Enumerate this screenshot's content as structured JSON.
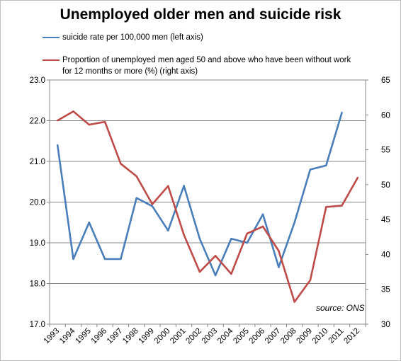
{
  "title": "Unemployed older men and suicide risk",
  "source": "source: ONS",
  "chart_data": {
    "type": "line",
    "title": "Unemployed older men and suicide risk",
    "x": [
      "1993",
      "1994",
      "1995",
      "1996",
      "1997",
      "1998",
      "1999",
      "2000",
      "2001",
      "2002",
      "2003",
      "2004",
      "2005",
      "2006",
      "2007",
      "2008",
      "2009",
      "2010",
      "2011",
      "2012"
    ],
    "y_left": {
      "ylim": [
        17.0,
        23.0
      ],
      "ticks": [
        "17.0",
        "18.0",
        "19.0",
        "20.0",
        "21.0",
        "22.0",
        "23.0"
      ]
    },
    "y_right": {
      "ylim": [
        30,
        65
      ],
      "ticks": [
        "30",
        "35",
        "40",
        "45",
        "50",
        "55",
        "60",
        "65"
      ]
    },
    "grid": true,
    "legend_placement": "top",
    "series": [
      {
        "name": "suicide rate per 100,000 men (left axis)",
        "axis": "left",
        "color": "#4a7ebb",
        "values": [
          21.4,
          18.6,
          19.5,
          18.6,
          18.6,
          20.1,
          19.9,
          19.3,
          20.4,
          19.1,
          18.2,
          19.1,
          19.0,
          19.7,
          18.4,
          19.5,
          20.8,
          20.9,
          22.2,
          null
        ]
      },
      {
        "name": "Proportion of unemployed men aged 50 and above who have been without work for 12 months or more (%) (right axis)",
        "axis": "right",
        "color": "#be4b48",
        "values": [
          59.2,
          60.5,
          58.6,
          59.0,
          53.0,
          51.2,
          47.2,
          49.8,
          42.8,
          37.5,
          39.8,
          37.2,
          43.0,
          44.0,
          40.5,
          33.2,
          36.3,
          46.8,
          47.0,
          51.0
        ]
      }
    ]
  }
}
